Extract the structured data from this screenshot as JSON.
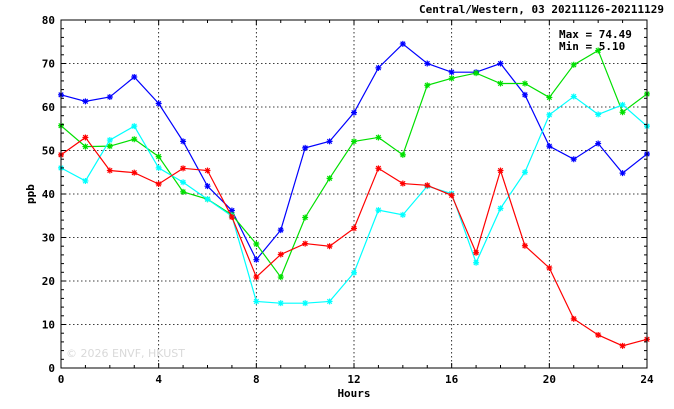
{
  "chart_data": {
    "type": "line",
    "title": "Central/Western, 03 20211126-20211129",
    "xlabel": "Hours",
    "ylabel": "ppb",
    "xlim": [
      0,
      24
    ],
    "ylim": [
      0,
      80
    ],
    "x_ticks": [
      0,
      4,
      8,
      12,
      16,
      20,
      24
    ],
    "y_ticks": [
      0,
      10,
      20,
      30,
      40,
      50,
      60,
      70,
      80
    ],
    "grid": true,
    "max_text": "Max = 74.49",
    "min_text": "Min =  5.10",
    "watermark": "© 2026 ENVF, HKUST",
    "x": [
      0,
      1,
      2,
      3,
      4,
      5,
      6,
      7,
      8,
      9,
      10,
      11,
      12,
      13,
      14,
      15,
      16,
      17,
      18,
      19,
      20,
      21,
      22,
      23,
      24
    ],
    "series": [
      {
        "color": "#0000ff",
        "values": [
          62.8,
          61.3,
          62.3,
          66.9,
          60.8,
          52.1,
          41.8,
          36.2,
          24.9,
          31.7,
          50.6,
          52.1,
          58.7,
          69.0,
          74.5,
          70.0,
          68.0,
          68.0,
          70.0,
          62.8,
          51.0,
          48.0,
          51.6,
          44.8,
          49.2
        ]
      },
      {
        "color": "#00e000",
        "values": [
          55.7,
          50.9,
          51.0,
          52.6,
          48.6,
          40.5,
          38.8,
          35.2,
          28.5,
          20.9,
          34.6,
          43.6,
          52.1,
          53.0,
          49.0,
          65.0,
          66.6,
          67.8,
          65.4,
          65.4,
          62.2,
          69.7,
          73.0,
          58.8,
          63.0
        ]
      },
      {
        "color": "#00ffff",
        "values": [
          46.0,
          43.0,
          52.4,
          55.6,
          46.0,
          42.7,
          38.8,
          34.9,
          15.3,
          14.9,
          14.9,
          15.3,
          21.9,
          36.3,
          35.2,
          41.8,
          40.1,
          24.2,
          36.7,
          45.0,
          58.2,
          62.4,
          58.3,
          60.5,
          55.6
        ]
      },
      {
        "color": "#ff0000",
        "values": [
          49.0,
          53.0,
          45.4,
          44.9,
          42.3,
          45.9,
          45.4,
          34.7,
          20.9,
          26.1,
          28.6,
          28.0,
          32.1,
          45.9,
          42.4,
          42.0,
          39.7,
          26.5,
          45.4,
          28.1,
          23.0,
          11.3,
          7.6,
          5.1,
          6.6
        ]
      }
    ]
  }
}
